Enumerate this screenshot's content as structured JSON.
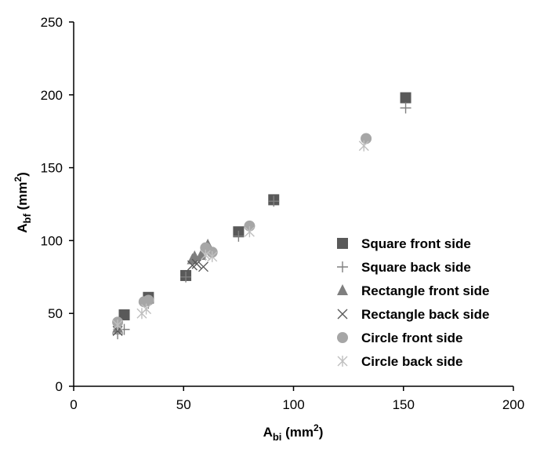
{
  "chart_data": {
    "type": "scatter",
    "title": "",
    "xlabel": {
      "main": "A",
      "sub": "bi",
      "unit_pre": " (mm",
      "unit_sup": "2",
      "unit_post": ")"
    },
    "ylabel": {
      "main": "A",
      "sub": "bf",
      "unit_pre": " (mm",
      "unit_sup": "2",
      "unit_post": ")"
    },
    "xlim": [
      0,
      200
    ],
    "ylim": [
      0,
      250
    ],
    "xticks": [
      0,
      50,
      100,
      150,
      200
    ],
    "yticks": [
      0,
      50,
      100,
      150,
      200,
      250
    ],
    "grid": false,
    "legend_position": "right",
    "series": [
      {
        "name": "Square front side",
        "marker": "square",
        "color": "#595959",
        "points": [
          [
            23,
            49
          ],
          [
            34,
            61
          ],
          [
            51,
            76
          ],
          [
            75,
            106
          ],
          [
            91,
            128
          ],
          [
            151,
            198
          ]
        ]
      },
      {
        "name": "Square back side",
        "marker": "plus",
        "color": "#808080",
        "points": [
          [
            20,
            36
          ],
          [
            23,
            39
          ],
          [
            34,
            57
          ],
          [
            51,
            75
          ],
          [
            75,
            103
          ],
          [
            91,
            127
          ],
          [
            151,
            191
          ]
        ]
      },
      {
        "name": "Rectangle front side",
        "marker": "triangle",
        "color": "#7f7f7f",
        "points": [
          [
            20,
            40
          ],
          [
            54,
            87
          ],
          [
            55,
            89
          ],
          [
            58,
            90
          ],
          [
            61,
            97
          ]
        ]
      },
      {
        "name": "Rectangle back side",
        "marker": "x",
        "color": "#595959",
        "points": [
          [
            20,
            38
          ],
          [
            54,
            83
          ],
          [
            56,
            84
          ],
          [
            59,
            82
          ]
        ]
      },
      {
        "name": "Circle front side",
        "marker": "circle",
        "color": "#a6a6a6",
        "points": [
          [
            20,
            44
          ],
          [
            32,
            58
          ],
          [
            34,
            59
          ],
          [
            60,
            95
          ],
          [
            63,
            92
          ],
          [
            80,
            110
          ],
          [
            133,
            170
          ]
        ]
      },
      {
        "name": "Circle back side",
        "marker": "asterisk",
        "color": "#bfbfbf",
        "points": [
          [
            20,
            42
          ],
          [
            31,
            50
          ],
          [
            33,
            53
          ],
          [
            60,
            90
          ],
          [
            63,
            89
          ],
          [
            80,
            106
          ],
          [
            132,
            165
          ]
        ]
      }
    ]
  }
}
